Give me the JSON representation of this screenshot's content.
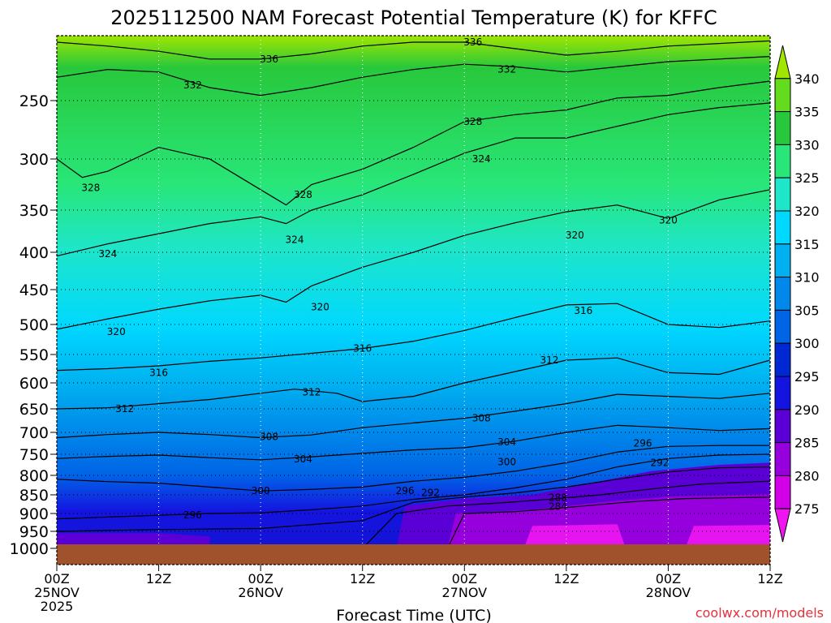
{
  "chart_data": {
    "type": "heatmap",
    "title": "2025112500 NAM Forecast Potential Temperature (K) for KFFC",
    "xlabel": "Forecast Time (UTC)",
    "ylabel": "",
    "credit": "coolwx.com/models",
    "x_ticks": [
      {
        "label": "00Z",
        "sub": "25NOV",
        "year": "2025",
        "hour": 0
      },
      {
        "label": "12Z",
        "sub": "",
        "year": "",
        "hour": 12
      },
      {
        "label": "00Z",
        "sub": "26NOV",
        "year": "",
        "hour": 24
      },
      {
        "label": "12Z",
        "sub": "",
        "year": "",
        "hour": 36
      },
      {
        "label": "00Z",
        "sub": "27NOV",
        "year": "",
        "hour": 48
      },
      {
        "label": "12Z",
        "sub": "",
        "year": "",
        "hour": 60
      },
      {
        "label": "00Z",
        "sub": "28NOV",
        "year": "",
        "hour": 72
      },
      {
        "label": "12Z",
        "sub": "",
        "year": "",
        "hour": 84
      }
    ],
    "y_ticks": [
      250,
      300,
      350,
      400,
      450,
      500,
      550,
      600,
      650,
      700,
      750,
      800,
      850,
      900,
      950,
      1000
    ],
    "y_range_hpa": [
      200,
      1000
    ],
    "x_range_hours": [
      0,
      84
    ],
    "colorbar": {
      "ticks": [
        340,
        335,
        330,
        325,
        320,
        315,
        310,
        305,
        300,
        295,
        290,
        285,
        280,
        275
      ],
      "colors": [
        "#a0e600",
        "#64dc1e",
        "#28c83c",
        "#28e678",
        "#1ee6c8",
        "#00d8ff",
        "#00b0f0",
        "#0088ea",
        "#0064e6",
        "#0028d2",
        "#1414e0",
        "#5a00d6",
        "#9600dc",
        "#d200e6",
        "#f014f0"
      ]
    },
    "ground_color": "#a0522d",
    "contours": [
      {
        "value": 336,
        "pts": [
          [
            0,
            205
          ],
          [
            6,
            208
          ],
          [
            12,
            212
          ],
          [
            18,
            218
          ],
          [
            24,
            218
          ],
          [
            30,
            214
          ],
          [
            36,
            208
          ],
          [
            42,
            205
          ],
          [
            48,
            205
          ],
          [
            54,
            210
          ],
          [
            60,
            215
          ],
          [
            66,
            212
          ],
          [
            72,
            208
          ],
          [
            78,
            206
          ],
          [
            84,
            204
          ]
        ]
      },
      {
        "value": 332,
        "pts": [
          [
            0,
            232
          ],
          [
            6,
            226
          ],
          [
            12,
            228
          ],
          [
            18,
            240
          ],
          [
            24,
            246
          ],
          [
            30,
            240
          ],
          [
            36,
            232
          ],
          [
            42,
            226
          ],
          [
            48,
            222
          ],
          [
            54,
            224
          ],
          [
            60,
            228
          ],
          [
            66,
            224
          ],
          [
            72,
            220
          ],
          [
            78,
            218
          ],
          [
            84,
            216
          ]
        ]
      },
      {
        "value": 328,
        "pts": [
          [
            0,
            300
          ],
          [
            3,
            318
          ],
          [
            6,
            312
          ],
          [
            12,
            290
          ],
          [
            18,
            300
          ],
          [
            24,
            330
          ],
          [
            27,
            345
          ],
          [
            30,
            325
          ],
          [
            36,
            310
          ],
          [
            42,
            290
          ],
          [
            48,
            268
          ],
          [
            54,
            262
          ],
          [
            60,
            258
          ],
          [
            66,
            248
          ],
          [
            72,
            246
          ],
          [
            78,
            240
          ],
          [
            84,
            235
          ]
        ]
      },
      {
        "value": 324,
        "pts": [
          [
            0,
            405
          ],
          [
            6,
            390
          ],
          [
            12,
            378
          ],
          [
            18,
            366
          ],
          [
            24,
            358
          ],
          [
            27,
            366
          ],
          [
            30,
            350
          ],
          [
            36,
            335
          ],
          [
            42,
            315
          ],
          [
            48,
            295
          ],
          [
            54,
            282
          ],
          [
            60,
            282
          ],
          [
            66,
            272
          ],
          [
            72,
            262
          ],
          [
            78,
            256
          ],
          [
            84,
            252
          ]
        ]
      },
      {
        "value": 320,
        "pts": [
          [
            0,
            508
          ],
          [
            6,
            492
          ],
          [
            12,
            478
          ],
          [
            18,
            466
          ],
          [
            24,
            458
          ],
          [
            27,
            468
          ],
          [
            30,
            445
          ],
          [
            36,
            420
          ],
          [
            42,
            400
          ],
          [
            48,
            380
          ],
          [
            54,
            365
          ],
          [
            60,
            352
          ],
          [
            66,
            345
          ],
          [
            72,
            360
          ],
          [
            78,
            340
          ],
          [
            84,
            330
          ]
        ]
      },
      {
        "value": 316,
        "pts": [
          [
            0,
            578
          ],
          [
            6,
            575
          ],
          [
            12,
            570
          ],
          [
            18,
            562
          ],
          [
            24,
            556
          ],
          [
            30,
            548
          ],
          [
            36,
            540
          ],
          [
            42,
            528
          ],
          [
            48,
            510
          ],
          [
            54,
            490
          ],
          [
            60,
            472
          ],
          [
            66,
            470
          ],
          [
            72,
            500
          ],
          [
            78,
            505
          ],
          [
            84,
            495
          ]
        ]
      },
      {
        "value": 312,
        "pts": [
          [
            0,
            650
          ],
          [
            6,
            648
          ],
          [
            12,
            640
          ],
          [
            18,
            632
          ],
          [
            24,
            620
          ],
          [
            28,
            612
          ],
          [
            33,
            620
          ],
          [
            36,
            636
          ],
          [
            42,
            626
          ],
          [
            48,
            600
          ],
          [
            54,
            580
          ],
          [
            60,
            560
          ],
          [
            66,
            556
          ],
          [
            72,
            582
          ],
          [
            78,
            585
          ],
          [
            84,
            560
          ]
        ]
      },
      {
        "value": 308,
        "pts": [
          [
            0,
            712
          ],
          [
            6,
            705
          ],
          [
            12,
            700
          ],
          [
            18,
            705
          ],
          [
            24,
            712
          ],
          [
            30,
            706
          ],
          [
            36,
            690
          ],
          [
            42,
            680
          ],
          [
            48,
            670
          ],
          [
            54,
            655
          ],
          [
            60,
            640
          ],
          [
            66,
            622
          ],
          [
            72,
            626
          ],
          [
            78,
            630
          ],
          [
            84,
            620
          ]
        ]
      },
      {
        "value": 304,
        "pts": [
          [
            0,
            760
          ],
          [
            6,
            755
          ],
          [
            12,
            752
          ],
          [
            18,
            758
          ],
          [
            24,
            763
          ],
          [
            30,
            756
          ],
          [
            36,
            748
          ],
          [
            42,
            740
          ],
          [
            48,
            735
          ],
          [
            54,
            720
          ],
          [
            60,
            700
          ],
          [
            66,
            685
          ],
          [
            72,
            690
          ],
          [
            78,
            696
          ],
          [
            84,
            692
          ]
        ]
      },
      {
        "value": 300,
        "pts": [
          [
            0,
            810
          ],
          [
            6,
            816
          ],
          [
            12,
            820
          ],
          [
            18,
            830
          ],
          [
            24,
            840
          ],
          [
            30,
            836
          ],
          [
            36,
            830
          ],
          [
            42,
            815
          ],
          [
            48,
            805
          ],
          [
            54,
            790
          ],
          [
            60,
            770
          ],
          [
            66,
            745
          ],
          [
            72,
            732
          ],
          [
            78,
            730
          ],
          [
            84,
            730
          ]
        ]
      },
      {
        "value": 296,
        "pts": [
          [
            0,
            915
          ],
          [
            6,
            910
          ],
          [
            12,
            905
          ],
          [
            18,
            900
          ],
          [
            24,
            898
          ],
          [
            30,
            890
          ],
          [
            36,
            880
          ],
          [
            42,
            862
          ],
          [
            48,
            850
          ],
          [
            54,
            832
          ],
          [
            60,
            810
          ],
          [
            66,
            780
          ],
          [
            72,
            760
          ],
          [
            78,
            752
          ],
          [
            84,
            750
          ]
        ]
      },
      {
        "value": 292,
        "pts": [
          [
            0,
            950
          ],
          [
            12,
            945
          ],
          [
            24,
            942
          ],
          [
            36,
            920
          ],
          [
            42,
            870
          ],
          [
            48,
            856
          ],
          [
            54,
            845
          ],
          [
            60,
            830
          ],
          [
            66,
            810
          ],
          [
            72,
            792
          ],
          [
            78,
            782
          ],
          [
            84,
            780
          ]
        ]
      },
      {
        "value": 288,
        "pts": [
          [
            36,
            1000
          ],
          [
            40,
            900
          ],
          [
            46,
            880
          ],
          [
            52,
            872
          ],
          [
            58,
            862
          ],
          [
            64,
            850
          ],
          [
            70,
            835
          ],
          [
            76,
            822
          ],
          [
            84,
            815
          ]
        ]
      },
      {
        "value": 284,
        "pts": [
          [
            46,
            1000
          ],
          [
            48,
            900
          ],
          [
            54,
            895
          ],
          [
            58,
            888
          ],
          [
            62,
            880
          ],
          [
            68,
            868
          ],
          [
            74,
            860
          ],
          [
            84,
            856
          ]
        ]
      }
    ],
    "labels": [
      {
        "text": "336",
        "hour": 25,
        "hpa": 218
      },
      {
        "text": "336",
        "hour": 49,
        "hpa": 205
      },
      {
        "text": "332",
        "hour": 16,
        "hpa": 238
      },
      {
        "text": "332",
        "hour": 53,
        "hpa": 226
      },
      {
        "text": "328",
        "hour": 4,
        "hpa": 328
      },
      {
        "text": "328",
        "hour": 29,
        "hpa": 335
      },
      {
        "text": "328",
        "hour": 49,
        "hpa": 268
      },
      {
        "text": "324",
        "hour": 6,
        "hpa": 402
      },
      {
        "text": "324",
        "hour": 28,
        "hpa": 385
      },
      {
        "text": "324",
        "hour": 50,
        "hpa": 300
      },
      {
        "text": "320",
        "hour": 7,
        "hpa": 512
      },
      {
        "text": "320",
        "hour": 31,
        "hpa": 475
      },
      {
        "text": "320",
        "hour": 61,
        "hpa": 380
      },
      {
        "text": "320",
        "hour": 72,
        "hpa": 362
      },
      {
        "text": "316",
        "hour": 12,
        "hpa": 582
      },
      {
        "text": "316",
        "hour": 36,
        "hpa": 540
      },
      {
        "text": "316",
        "hour": 62,
        "hpa": 480
      },
      {
        "text": "312",
        "hour": 8,
        "hpa": 650
      },
      {
        "text": "312",
        "hour": 30,
        "hpa": 618
      },
      {
        "text": "312",
        "hour": 58,
        "hpa": 560
      },
      {
        "text": "308",
        "hour": 25,
        "hpa": 710
      },
      {
        "text": "308",
        "hour": 50,
        "hpa": 670
      },
      {
        "text": "304",
        "hour": 29,
        "hpa": 762
      },
      {
        "text": "304",
        "hour": 53,
        "hpa": 722
      },
      {
        "text": "300",
        "hour": 24,
        "hpa": 840
      },
      {
        "text": "300",
        "hour": 53,
        "hpa": 768
      },
      {
        "text": "296",
        "hour": 16,
        "hpa": 905
      },
      {
        "text": "296",
        "hour": 41,
        "hpa": 840
      },
      {
        "text": "296",
        "hour": 69,
        "hpa": 725
      },
      {
        "text": "292",
        "hour": 44,
        "hpa": 845
      },
      {
        "text": "292",
        "hour": 71,
        "hpa": 770
      },
      {
        "text": "288",
        "hour": 59,
        "hpa": 858
      },
      {
        "text": "284",
        "hour": 59,
        "hpa": 882
      }
    ]
  }
}
